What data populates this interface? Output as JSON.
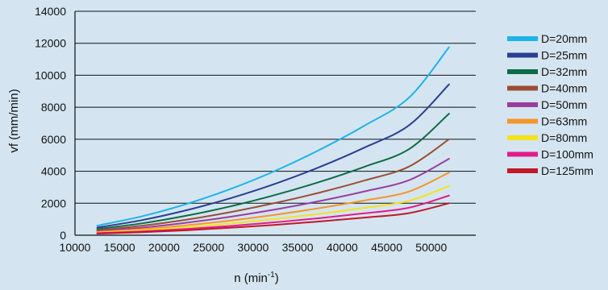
{
  "colors": {
    "background": "#d4e5f1",
    "axis": "#111111",
    "grid": "#111111"
  },
  "chart_data": {
    "type": "line",
    "title": "",
    "xlabel": "n (min",
    "xlabel_sup": "-1",
    "xlabel_close": ")",
    "ylabel": "vf (mm/min)",
    "xlim": [
      10000,
      55000
    ],
    "ylim": [
      0,
      14000
    ],
    "xticks": [
      10000,
      15000,
      20000,
      25000,
      30000,
      35000,
      40000,
      45000,
      50000
    ],
    "yticks": [
      0,
      2000,
      4000,
      6000,
      8000,
      10000,
      12000,
      14000
    ],
    "grid": "horizontal",
    "legend_position": "right",
    "x": [
      12500,
      17500,
      22500,
      27500,
      32500,
      37500,
      42500,
      47500,
      52000
    ],
    "series": [
      {
        "name": "D=20mm",
        "color": "#1eb4e8",
        "values": [
          600,
          1180,
          1950,
          2900,
          4030,
          5350,
          6850,
          8600,
          11750
        ]
      },
      {
        "name": "D=25mm",
        "color": "#2a3f93",
        "values": [
          480,
          940,
          1560,
          2320,
          3220,
          4270,
          5480,
          6870,
          9430
        ]
      },
      {
        "name": "D=32mm",
        "color": "#0d6b45",
        "values": [
          390,
          740,
          1220,
          1810,
          2520,
          3340,
          4280,
          5380,
          7600
        ]
      },
      {
        "name": "D=40mm",
        "color": "#9b4e34",
        "values": [
          310,
          590,
          970,
          1450,
          2020,
          2670,
          3420,
          4290,
          6000
        ]
      },
      {
        "name": "D=50mm",
        "color": "#9a3e9e",
        "values": [
          250,
          470,
          780,
          1160,
          1610,
          2140,
          2740,
          3440,
          4780
        ]
      },
      {
        "name": "D=63mm",
        "color": "#f4952a",
        "values": [
          200,
          375,
          620,
          920,
          1280,
          1700,
          2170,
          2730,
          3920
        ]
      },
      {
        "name": "D=80mm",
        "color": "#f6e21a",
        "values": [
          160,
          300,
          490,
          730,
          1010,
          1340,
          1710,
          2150,
          3080
        ]
      },
      {
        "name": "D=100mm",
        "color": "#e31b8b",
        "values": [
          130,
          240,
          390,
          580,
          810,
          1070,
          1370,
          1720,
          2480
        ]
      },
      {
        "name": "D=125mm",
        "color": "#c1182a",
        "values": [
          100,
          190,
          310,
          470,
          650,
          860,
          1100,
          1380,
          2000
        ]
      }
    ]
  }
}
